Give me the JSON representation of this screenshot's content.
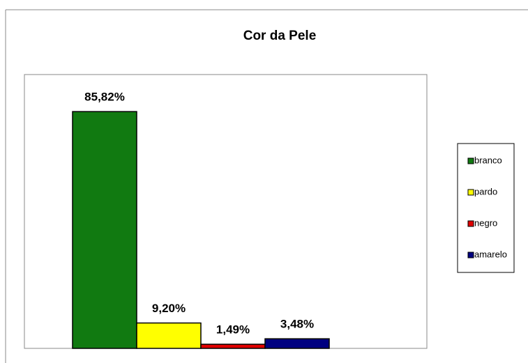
{
  "chart_data": {
    "type": "bar",
    "title": "Cor da Pele",
    "categories": [
      null
    ],
    "series": [
      {
        "name": "branco",
        "color": "#117a11",
        "values": [
          85.82
        ],
        "value_labels": [
          "85,82%"
        ]
      },
      {
        "name": "pardo",
        "color": "#ffff00",
        "values": [
          9.2
        ],
        "value_labels": [
          "9,20%"
        ]
      },
      {
        "name": "negro",
        "color": "#e00000",
        "values": [
          1.49
        ],
        "value_labels": [
          "1,49%"
        ]
      },
      {
        "name": "amarelo",
        "color": "#000080",
        "values": [
          3.48
        ],
        "value_labels": [
          "3,48%"
        ]
      }
    ],
    "ylim": [
      0,
      100
    ],
    "legend": "right"
  }
}
